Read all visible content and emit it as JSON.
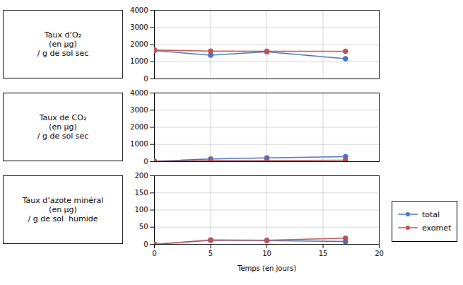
{
  "chart_data": [
    {
      "type": "line",
      "ylabel": "Taux d’O₂\n(en µg)\n/ g de sol sec",
      "x": [
        0,
        5,
        10,
        17
      ],
      "xlim": [
        0,
        20
      ],
      "xticks": [
        0,
        5,
        10,
        15,
        20
      ],
      "ylim": [
        0,
        4000
      ],
      "yticks": [
        0,
        1000,
        2000,
        3000,
        4000
      ],
      "grid": true,
      "tick_labels": "y",
      "marker": "circle",
      "series": [
        {
          "name": "total",
          "color": "#4472C4",
          "values": [
            1650,
            1380,
            1580,
            1180
          ],
          "yerr": [
            null,
            80,
            null,
            130
          ]
        },
        {
          "name": "exomet",
          "color": "#C0504D",
          "values": [
            1680,
            1620,
            1610,
            1610
          ]
        }
      ]
    },
    {
      "type": "line",
      "ylabel": "Taux de CO₂\n(en µg)\n/ g de sol sec",
      "x": [
        0,
        5,
        10,
        17
      ],
      "xlim": [
        0,
        20
      ],
      "xticks": [
        0,
        5,
        10,
        15,
        20
      ],
      "ylim": [
        0,
        4000
      ],
      "yticks": [
        0,
        1000,
        2000,
        3000,
        4000
      ],
      "grid": true,
      "tick_labels": "y",
      "marker": "circle",
      "series": [
        {
          "name": "total",
          "color": "#4472C4",
          "values": [
            20,
            155,
            220,
            290
          ]
        },
        {
          "name": "exomet",
          "color": "#C0504D",
          "values": [
            10,
            50,
            60,
            80
          ]
        }
      ]
    },
    {
      "type": "line",
      "ylabel": "Taux d’azote minéral\n(en µg)\n/ g de sol  humide",
      "xlabel": "Temps (en jours)",
      "x": [
        0,
        5,
        10,
        17
      ],
      "xlim": [
        0,
        20
      ],
      "xticks": [
        0,
        5,
        10,
        15,
        20
      ],
      "ylim": [
        0,
        200
      ],
      "yticks": [
        0,
        50,
        100,
        150,
        200
      ],
      "grid": true,
      "legend": "right",
      "marker": "circle",
      "series": [
        {
          "name": "total",
          "color": "#4472C4",
          "values": [
            0,
            12,
            11,
            8
          ]
        },
        {
          "name": "exomet",
          "color": "#C0504D",
          "values": [
            0,
            13,
            12,
            18
          ]
        }
      ]
    }
  ]
}
